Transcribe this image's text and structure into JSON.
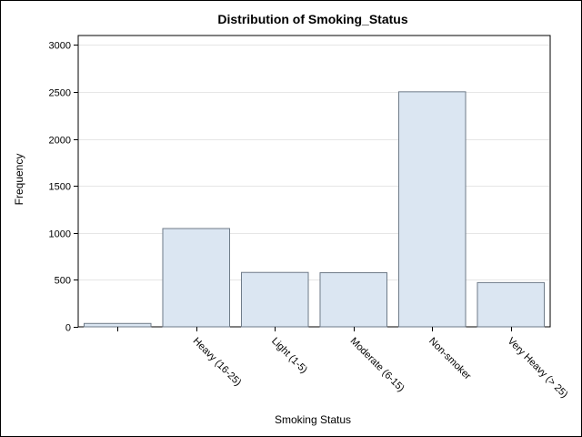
{
  "chart_data": {
    "type": "bar",
    "title": "Distribution of Smoking_Status",
    "xlabel": "Smoking Status",
    "ylabel": "Frequency",
    "categories": [
      "",
      "Heavy (16-25)",
      "Light (1-5)",
      "Moderate (6-15)",
      "Non-smoker",
      "Very Heavy (> 25)"
    ],
    "values": [
      36,
      1046,
      579,
      576,
      2501,
      471
    ],
    "ylim": [
      0,
      3100
    ],
    "yticks": [
      0,
      500,
      1000,
      1500,
      2000,
      2500,
      3000
    ],
    "grid": true,
    "legend": "none",
    "colors": {
      "bar_fill": "#dbe6f2",
      "bar_stroke": "#6e7a88",
      "grid": "#e6e6e6",
      "axis": "#000000"
    }
  }
}
